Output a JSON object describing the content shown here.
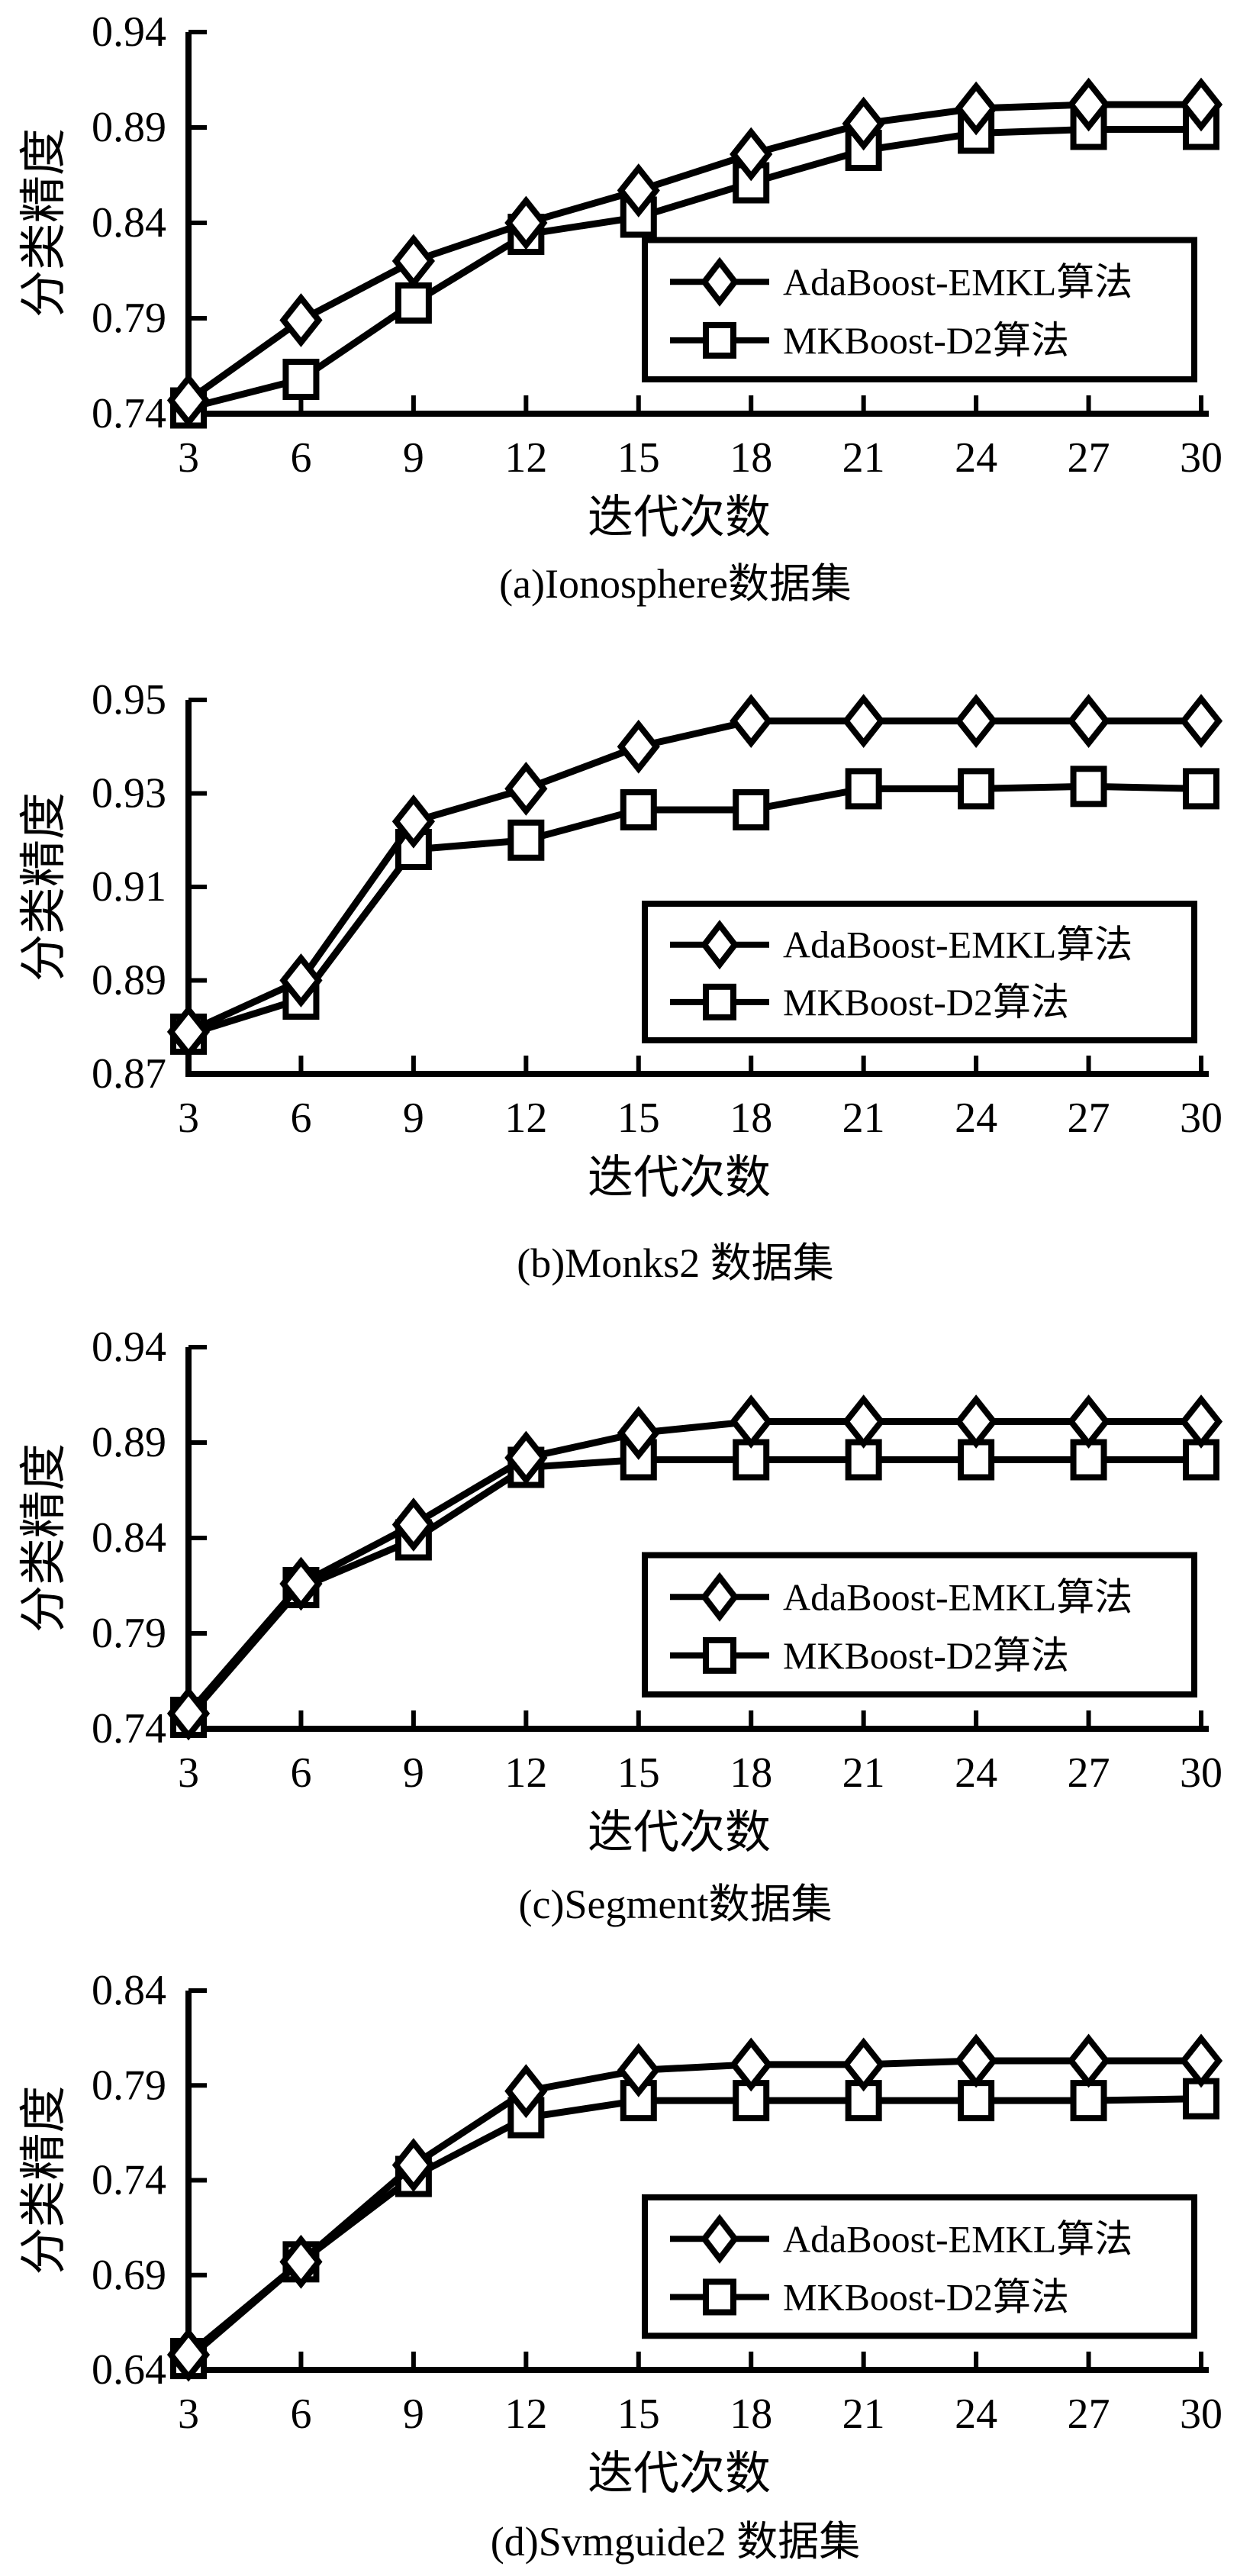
{
  "figure": {
    "background": "#ffffff",
    "ink_color": "#000000",
    "ylabel": "分类精度",
    "xlabel": "迭代次数"
  },
  "chart_data": [
    {
      "panel": "a",
      "type": "line",
      "title": "(a)Ionosphere数据集",
      "xlabel": "迭代次数",
      "ylabel": "分类精度",
      "x": [
        3,
        6,
        9,
        12,
        15,
        18,
        21,
        24,
        27,
        30
      ],
      "xlim": [
        3,
        30
      ],
      "ylim": [
        0.74,
        0.94
      ],
      "yticks": [
        0.74,
        0.79,
        0.84,
        0.89,
        0.94
      ],
      "grid": false,
      "legend_position": "center right",
      "series": [
        {
          "name": "AdaBoost-EMKL算法",
          "marker": "diamond",
          "values": [
            0.747,
            0.789,
            0.82,
            0.84,
            0.857,
            0.876,
            0.892,
            0.9,
            0.902,
            0.902
          ]
        },
        {
          "name": "MKBoost-D2算法",
          "marker": "square",
          "values": [
            0.743,
            0.758,
            0.798,
            0.834,
            0.843,
            0.861,
            0.878,
            0.887,
            0.889,
            0.889
          ]
        }
      ]
    },
    {
      "panel": "b",
      "type": "line",
      "title": "(b)Monks2 数据集",
      "xlabel": "迭代次数",
      "ylabel": "分类精度",
      "x": [
        3,
        6,
        9,
        12,
        15,
        18,
        21,
        24,
        27,
        30
      ],
      "xlim": [
        3,
        30
      ],
      "ylim": [
        0.87,
        0.95
      ],
      "yticks": [
        0.87,
        0.89,
        0.91,
        0.93,
        0.95
      ],
      "grid": false,
      "legend_position": "lower right",
      "series": [
        {
          "name": "AdaBoost-EMKL算法",
          "marker": "diamond",
          "values": [
            0.879,
            0.89,
            0.924,
            0.931,
            0.94,
            0.9455,
            0.9455,
            0.9455,
            0.9455,
            0.9455
          ]
        },
        {
          "name": "MKBoost-D2算法",
          "marker": "square",
          "values": [
            0.8785,
            0.886,
            0.918,
            0.92,
            0.9265,
            0.9265,
            0.931,
            0.931,
            0.9315,
            0.931
          ]
        }
      ]
    },
    {
      "panel": "c",
      "type": "line",
      "title": "(c)Segment数据集",
      "xlabel": "迭代次数",
      "ylabel": "分类精度",
      "x": [
        3,
        6,
        9,
        12,
        15,
        18,
        21,
        24,
        27,
        30
      ],
      "xlim": [
        3,
        30
      ],
      "ylim": [
        0.74,
        0.94
      ],
      "yticks": [
        0.74,
        0.79,
        0.84,
        0.89,
        0.94
      ],
      "grid": false,
      "legend_position": "lower right",
      "series": [
        {
          "name": "AdaBoost-EMKL算法",
          "marker": "diamond",
          "values": [
            0.748,
            0.816,
            0.847,
            0.882,
            0.895,
            0.901,
            0.901,
            0.901,
            0.901,
            0.901
          ]
        },
        {
          "name": "MKBoost-D2算法",
          "marker": "square",
          "values": [
            0.746,
            0.814,
            0.839,
            0.877,
            0.881,
            0.881,
            0.881,
            0.881,
            0.881,
            0.881
          ]
        }
      ]
    },
    {
      "panel": "d",
      "type": "line",
      "title": "(d)Svmguide2 数据集",
      "xlabel": "迭代次数",
      "ylabel": "分类精度",
      "x": [
        3,
        6,
        9,
        12,
        15,
        18,
        21,
        24,
        27,
        30
      ],
      "xlim": [
        3,
        30
      ],
      "ylim": [
        0.64,
        0.84
      ],
      "yticks": [
        0.64,
        0.69,
        0.74,
        0.79,
        0.84
      ],
      "grid": false,
      "legend_position": "lower right",
      "series": [
        {
          "name": "AdaBoost-EMKL算法",
          "marker": "diamond",
          "values": [
            0.648,
            0.697,
            0.748,
            0.787,
            0.798,
            0.801,
            0.801,
            0.803,
            0.803,
            0.803
          ]
        },
        {
          "name": "MKBoost-D2算法",
          "marker": "square",
          "values": [
            0.646,
            0.697,
            0.742,
            0.773,
            0.782,
            0.782,
            0.782,
            0.782,
            0.782,
            0.783
          ]
        }
      ]
    }
  ]
}
